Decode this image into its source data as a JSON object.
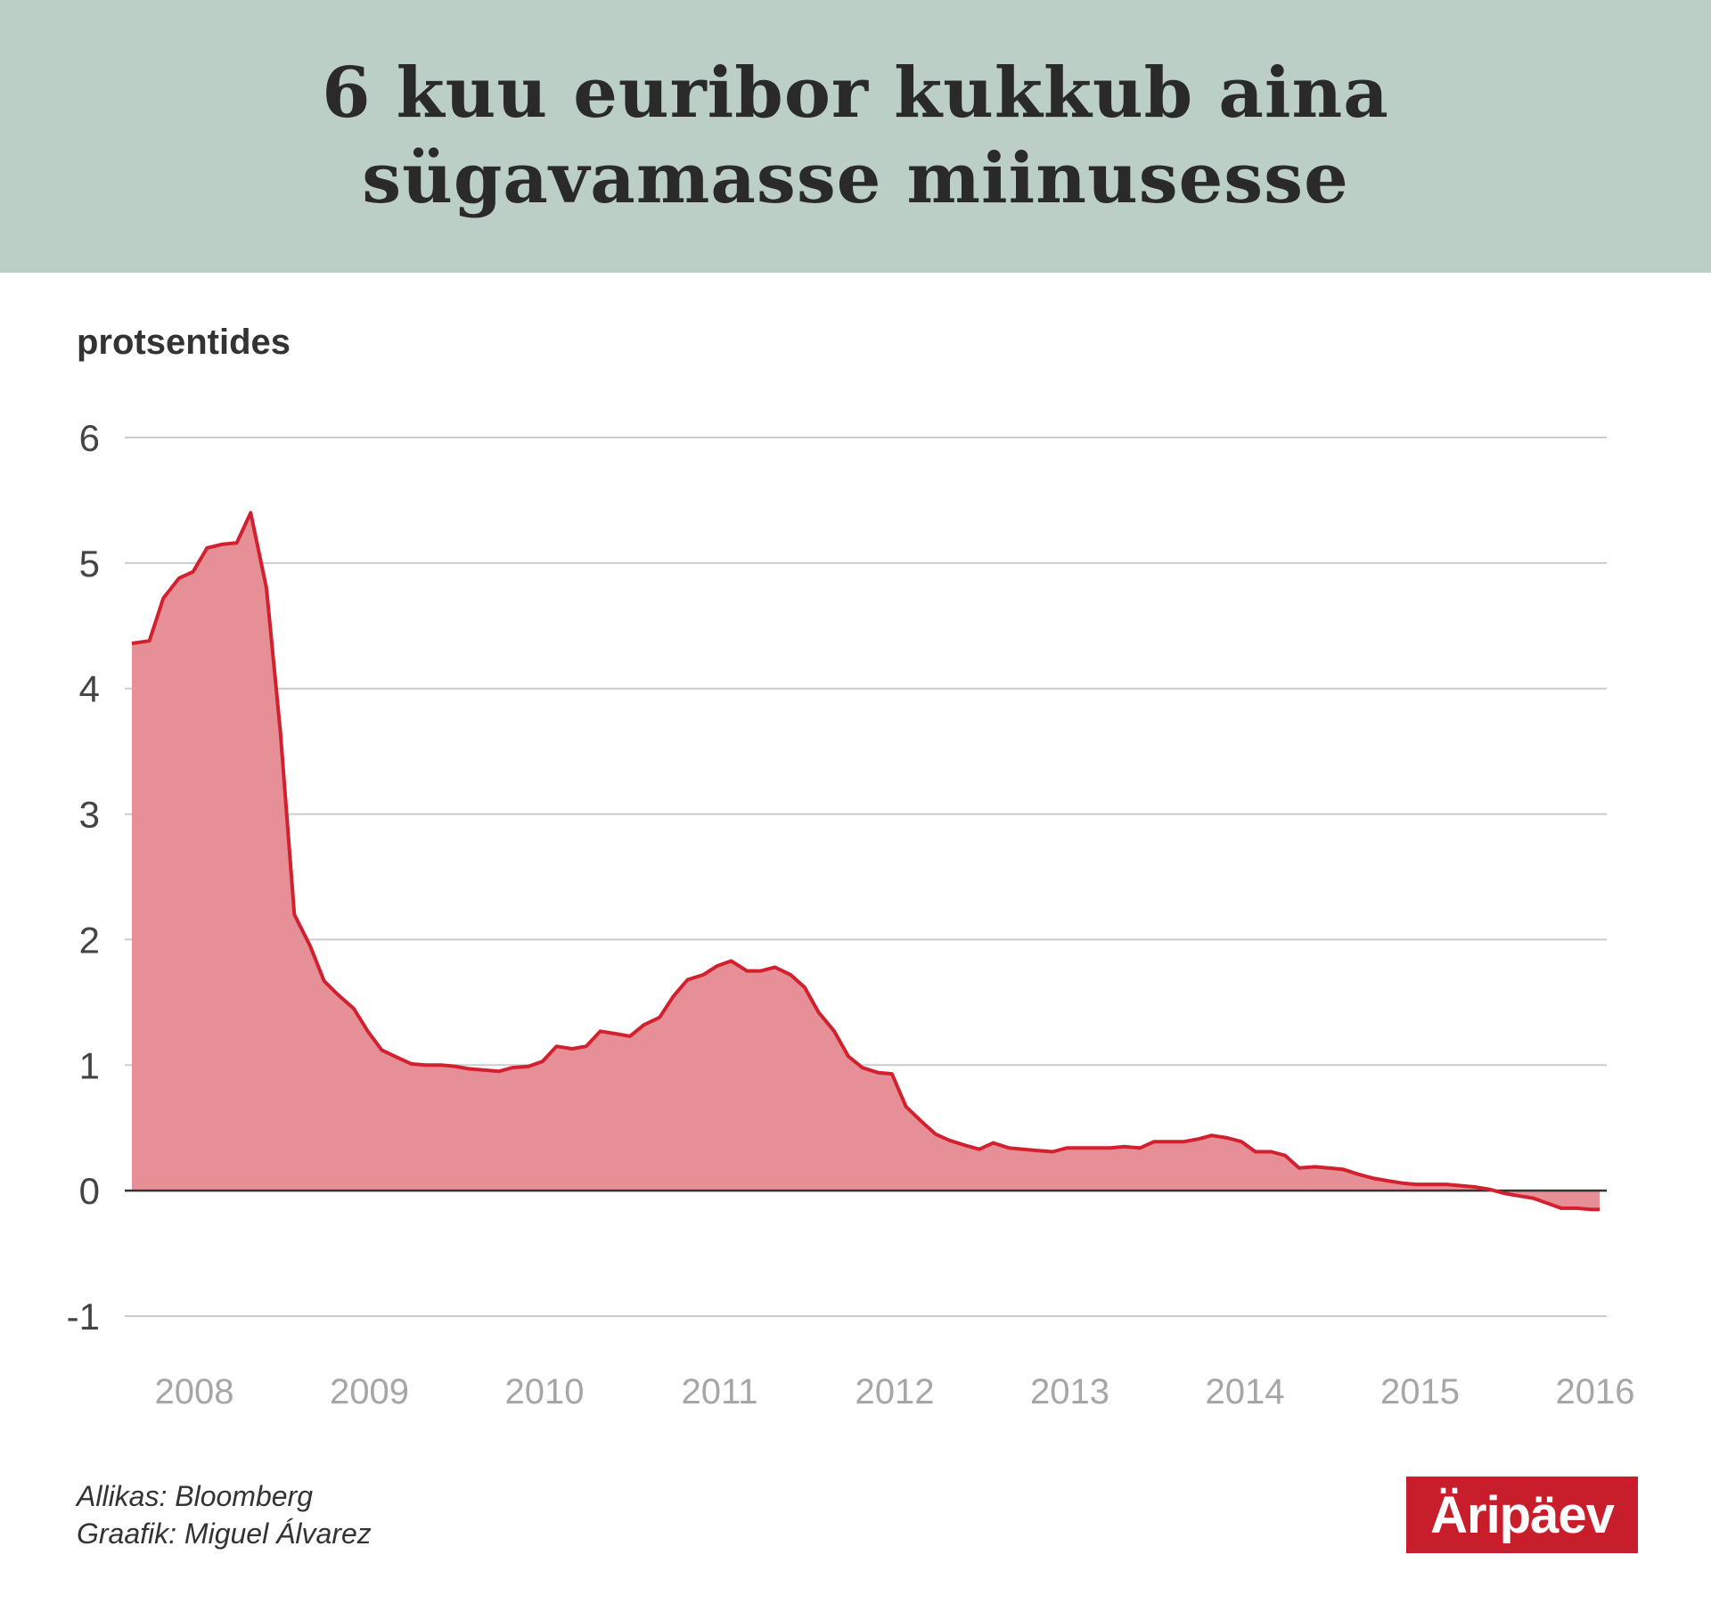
{
  "header": {
    "title_line1": "6 kuu euribor kukkub aina",
    "title_line2": "sügavamasse miinusesse"
  },
  "footer": {
    "source": "Allikas: Bloomberg",
    "graphic": "Graafik: Miguel Álvarez"
  },
  "logo": {
    "text": "Äripäev"
  },
  "colors": {
    "header_bg": "#bccfc7",
    "line": "#d3202f",
    "area": "#e78f96",
    "grid": "#cccccc",
    "logo_bg": "#c81d2a"
  },
  "chart_data": {
    "type": "area",
    "title": "6 kuu euribor kukkub aina sügavamasse miinusesse",
    "ylabel": "protsentides",
    "xlabel": "",
    "ylim": [
      -1,
      6
    ],
    "xlim": [
      2007.65,
      2016.1
    ],
    "yticks": [
      "6",
      "5",
      "4",
      "3",
      "2",
      "1",
      "0",
      "-1"
    ],
    "xticks": [
      "2008",
      "2009",
      "2010",
      "2011",
      "2012",
      "2013",
      "2014",
      "2015",
      "2016"
    ],
    "grid": true,
    "legend": "none",
    "series": [
      {
        "x": [
          2007.65,
          2007.75,
          2007.83,
          2007.92,
          2008.0,
          2008.08,
          2008.17,
          2008.25,
          2008.33,
          2008.42,
          2008.5,
          2008.58,
          2008.67,
          2008.75,
          2008.83,
          2008.92,
          2009.0,
          2009.08,
          2009.17,
          2009.25,
          2009.33,
          2009.42,
          2009.5,
          2009.58,
          2009.67,
          2009.75,
          2009.83,
          2009.92,
          2010.0,
          2010.08,
          2010.17,
          2010.25,
          2010.33,
          2010.42,
          2010.5,
          2010.58,
          2010.67,
          2010.75,
          2010.83,
          2010.92,
          2011.0,
          2011.08,
          2011.17,
          2011.25,
          2011.33,
          2011.42,
          2011.5,
          2011.58,
          2011.67,
          2011.75,
          2011.83,
          2011.92,
          2012.0,
          2012.08,
          2012.17,
          2012.25,
          2012.33,
          2012.42,
          2012.5,
          2012.58,
          2012.67,
          2012.75,
          2012.83,
          2012.92,
          2013.0,
          2013.08,
          2013.17,
          2013.25,
          2013.33,
          2013.42,
          2013.5,
          2013.58,
          2013.67,
          2013.75,
          2013.83,
          2013.92,
          2014.0,
          2014.08,
          2014.17,
          2014.25,
          2014.33,
          2014.42,
          2014.5,
          2014.58,
          2014.67,
          2014.75,
          2014.83,
          2014.92,
          2015.0,
          2015.08,
          2015.17,
          2015.25,
          2015.33,
          2015.42,
          2015.5,
          2015.58,
          2015.67,
          2015.75,
          2015.83,
          2015.92,
          2016.0,
          2016.05
        ],
        "y": [
          4.36,
          4.38,
          4.72,
          4.88,
          4.93,
          5.12,
          5.15,
          5.16,
          5.4,
          4.8,
          3.65,
          2.2,
          1.95,
          1.67,
          1.56,
          1.45,
          1.27,
          1.12,
          1.06,
          1.01,
          1.0,
          1.0,
          0.99,
          0.97,
          0.96,
          0.95,
          0.98,
          0.99,
          1.03,
          1.15,
          1.13,
          1.15,
          1.27,
          1.25,
          1.23,
          1.32,
          1.38,
          1.55,
          1.68,
          1.72,
          1.79,
          1.83,
          1.75,
          1.75,
          1.78,
          1.72,
          1.62,
          1.42,
          1.27,
          1.07,
          0.98,
          0.94,
          0.93,
          0.67,
          0.55,
          0.45,
          0.4,
          0.36,
          0.33,
          0.38,
          0.34,
          0.33,
          0.32,
          0.31,
          0.34,
          0.34,
          0.34,
          0.34,
          0.35,
          0.34,
          0.39,
          0.39,
          0.39,
          0.41,
          0.44,
          0.42,
          0.39,
          0.31,
          0.31,
          0.28,
          0.18,
          0.19,
          0.18,
          0.17,
          0.13,
          0.1,
          0.08,
          0.06,
          0.05,
          0.05,
          0.05,
          0.04,
          0.03,
          0.01,
          -0.02,
          -0.04,
          -0.06,
          -0.1,
          -0.14,
          -0.14,
          -0.15,
          -0.15
        ]
      }
    ]
  }
}
